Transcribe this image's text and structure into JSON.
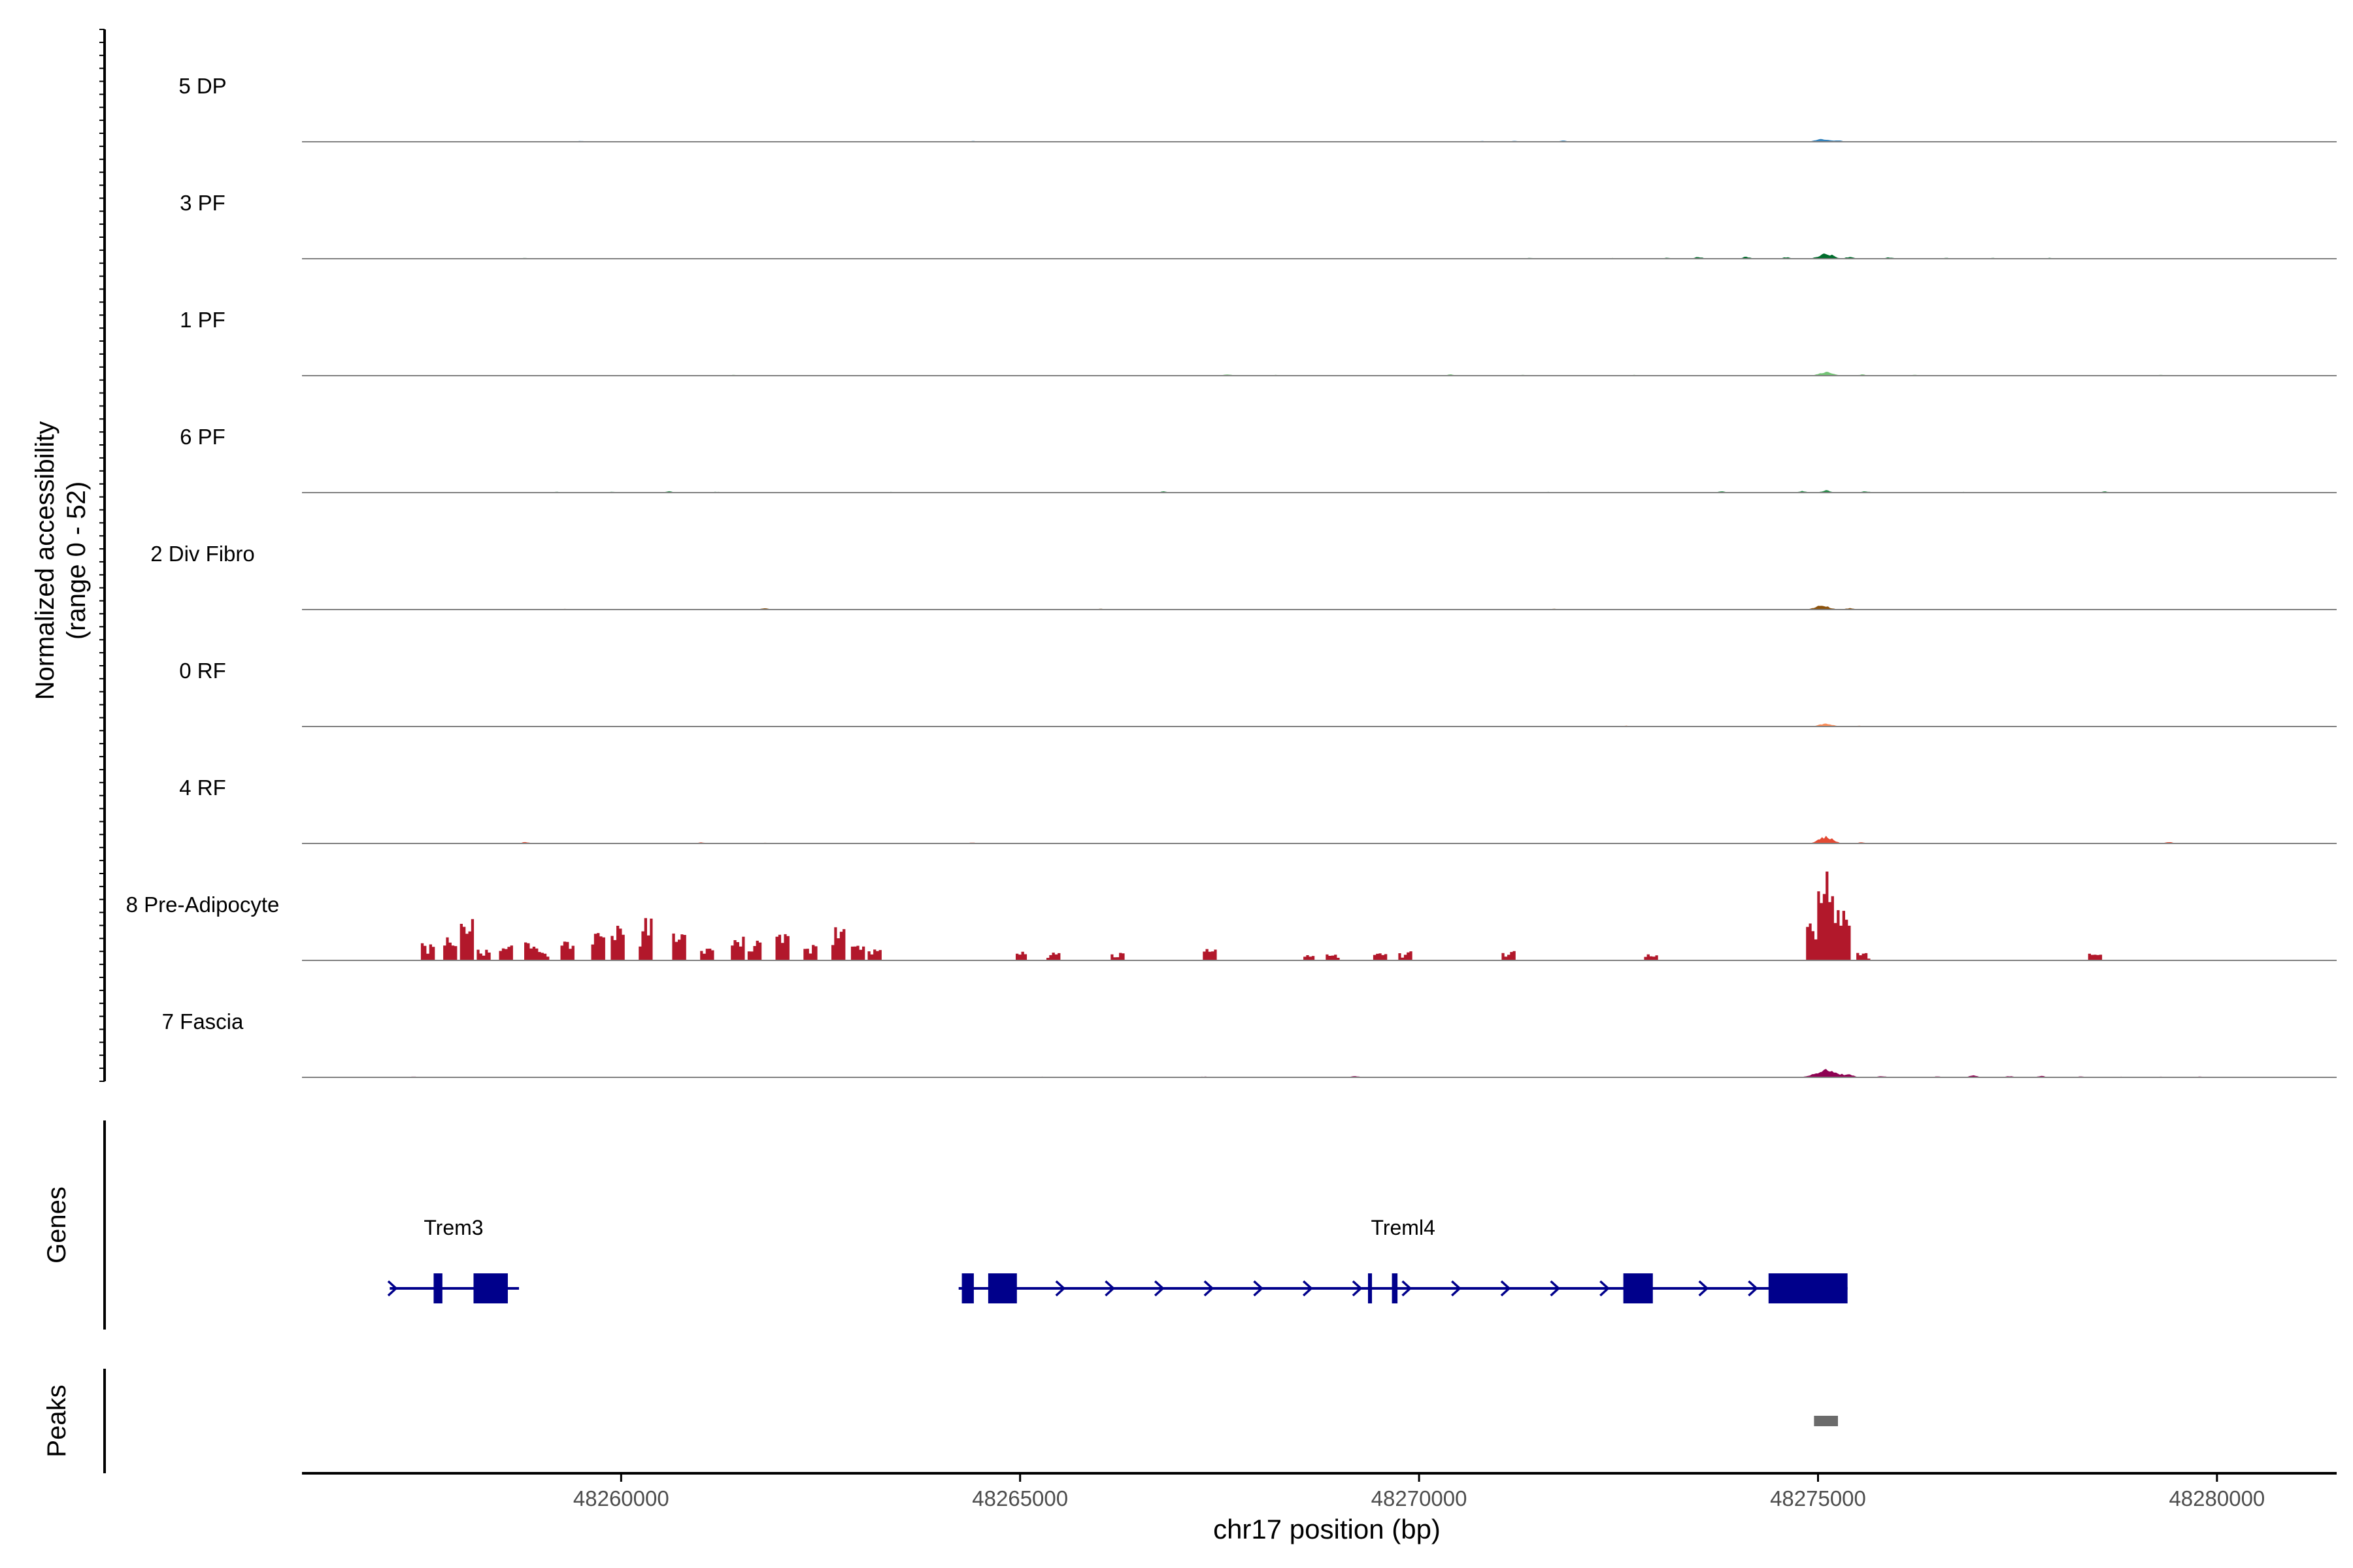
{
  "chart_data": {
    "type": "coverage",
    "title": "",
    "region": "chr17:48256000-48281500",
    "xlabel": "chr17 position (bp)",
    "xlim": [
      48256000,
      48281500
    ],
    "xticks": [
      48260000,
      48265000,
      48270000,
      48275000,
      48280000
    ],
    "xtick_labels": [
      "48260000",
      "48265000",
      "48270000",
      "48275000",
      "48280000"
    ],
    "ylabel_line1": "Normalized accessibility",
    "ylabel_line2": "(range 0 - 52)",
    "ylim": [
      0,
      52
    ],
    "tracks": [
      {
        "name": "5 DP",
        "color": "#3182bd",
        "style": "smooth",
        "scale": 0.18,
        "peaks": [
          [
            48257500,
            0.5
          ],
          [
            48258300,
            1.0
          ],
          [
            48258700,
            0.8
          ],
          [
            48259200,
            1.5
          ],
          [
            48259500,
            2.5
          ],
          [
            48259850,
            1.0
          ],
          [
            48261200,
            1.0
          ],
          [
            48262300,
            1.5
          ],
          [
            48263800,
            1.5
          ],
          [
            48264400,
            2.5
          ],
          [
            48265400,
            1.0
          ],
          [
            48266100,
            1.0
          ],
          [
            48267200,
            0.8
          ],
          [
            48268100,
            1.0
          ],
          [
            48269400,
            0.8
          ],
          [
            48270800,
            2.5
          ],
          [
            48271200,
            3.0
          ],
          [
            48271800,
            3.5
          ],
          [
            48272600,
            1.5
          ],
          [
            48273600,
            1.0
          ],
          [
            48274300,
            1.0
          ],
          [
            48275050,
            9.0
          ],
          [
            48275250,
            4.5
          ],
          [
            48275700,
            2.0
          ],
          [
            48276300,
            1.5
          ],
          [
            48277700,
            2.5
          ],
          [
            48278400,
            1.0
          ],
          [
            48279200,
            0.8
          ],
          [
            48280300,
            0.8
          ]
        ]
      },
      {
        "name": "3 PF",
        "color": "#006d2c",
        "style": "smooth",
        "scale": 0.22,
        "peaks": [
          [
            48257600,
            0.8
          ],
          [
            48258100,
            1.5
          ],
          [
            48258800,
            2.0
          ],
          [
            48259600,
            1.0
          ],
          [
            48260700,
            1.0
          ],
          [
            48261800,
            1.0
          ],
          [
            48262900,
            1.0
          ],
          [
            48264200,
            1.5
          ],
          [
            48265200,
            1.0
          ],
          [
            48266400,
            1.0
          ],
          [
            48267800,
            1.0
          ],
          [
            48268500,
            1.5
          ],
          [
            48270100,
            2.0
          ],
          [
            48271400,
            2.5
          ],
          [
            48272400,
            2.0
          ],
          [
            48273100,
            2.5
          ],
          [
            48273500,
            4.5
          ],
          [
            48274100,
            5.0
          ],
          [
            48274600,
            4.0
          ],
          [
            48275100,
            14.0
          ],
          [
            48275400,
            5.0
          ],
          [
            48275900,
            3.5
          ],
          [
            48276600,
            2.5
          ],
          [
            48277200,
            2.0
          ],
          [
            48277900,
            2.5
          ],
          [
            48278600,
            1.5
          ],
          [
            48279500,
            1.5
          ]
        ]
      },
      {
        "name": "1 PF",
        "color": "#74c476",
        "style": "smooth",
        "scale": 0.22,
        "peaks": [
          [
            48257800,
            0.8
          ],
          [
            48258600,
            1.0
          ],
          [
            48259500,
            1.0
          ],
          [
            48260400,
            1.0
          ],
          [
            48261400,
            2.0
          ],
          [
            48262500,
            1.0
          ],
          [
            48263400,
            1.5
          ],
          [
            48264400,
            1.5
          ],
          [
            48265700,
            1.5
          ],
          [
            48266800,
            1.0
          ],
          [
            48267600,
            3.0
          ],
          [
            48268200,
            2.0
          ],
          [
            48269400,
            1.5
          ],
          [
            48270400,
            3.0
          ],
          [
            48271300,
            2.0
          ],
          [
            48272700,
            2.0
          ],
          [
            48273700,
            1.0
          ],
          [
            48274400,
            1.0
          ],
          [
            48275100,
            10.0
          ],
          [
            48275550,
            3.0
          ],
          [
            48276200,
            2.5
          ],
          [
            48277100,
            1.5
          ],
          [
            48278200,
            1.0
          ],
          [
            48279300,
            2.0
          ],
          [
            48280300,
            0.8
          ]
        ]
      },
      {
        "name": "6 PF",
        "color": "#238b45",
        "style": "smooth",
        "scale": 0.22,
        "peaks": [
          [
            48257200,
            1.5
          ],
          [
            48258400,
            1.5
          ],
          [
            48259200,
            2.0
          ],
          [
            48259900,
            2.5
          ],
          [
            48260600,
            3.5
          ],
          [
            48261200,
            2.0
          ],
          [
            48261800,
            1.5
          ],
          [
            48262700,
            1.5
          ],
          [
            48263400,
            2.0
          ],
          [
            48264800,
            1.5
          ],
          [
            48265500,
            1.5
          ],
          [
            48266300,
            2.0
          ],
          [
            48266800,
            3.0
          ],
          [
            48269700,
            1.5
          ],
          [
            48270400,
            1.0
          ],
          [
            48271600,
            2.0
          ],
          [
            48272200,
            1.5
          ],
          [
            48272900,
            1.5
          ],
          [
            48273800,
            3.0
          ],
          [
            48274800,
            4.0
          ],
          [
            48275100,
            6.0
          ],
          [
            48275600,
            3.5
          ],
          [
            48276100,
            1.5
          ],
          [
            48276800,
            2.0
          ],
          [
            48277700,
            1.5
          ],
          [
            48278600,
            3.0
          ],
          [
            48279200,
            1.5
          ],
          [
            48280300,
            0.5
          ]
        ]
      },
      {
        "name": "2 Div Fibro",
        "color": "#8c510a",
        "style": "smooth",
        "scale": 0.22,
        "peaks": [
          [
            48257500,
            1.5
          ],
          [
            48258300,
            1.5
          ],
          [
            48259300,
            2.0
          ],
          [
            48260200,
            1.5
          ],
          [
            48261000,
            1.5
          ],
          [
            48261800,
            3.0
          ],
          [
            48262300,
            1.5
          ],
          [
            48263100,
            1.5
          ],
          [
            48264400,
            1.5
          ],
          [
            48265200,
            1.5
          ],
          [
            48266000,
            2.0
          ],
          [
            48267200,
            1.5
          ],
          [
            48268100,
            1.5
          ],
          [
            48270000,
            1.5
          ],
          [
            48270900,
            1.5
          ],
          [
            48271700,
            2.0
          ],
          [
            48272500,
            1.0
          ],
          [
            48273200,
            1.0
          ],
          [
            48273800,
            1.5
          ],
          [
            48274400,
            1.5
          ],
          [
            48275050,
            11.0
          ],
          [
            48275400,
            4.0
          ],
          [
            48276000,
            1.0
          ],
          [
            48277000,
            1.0
          ],
          [
            48278000,
            1.5
          ],
          [
            48279100,
            1.5
          ],
          [
            48280200,
            1.0
          ]
        ]
      },
      {
        "name": "0 RF",
        "color": "#fc8d59",
        "style": "smooth",
        "scale": 0.18,
        "peaks": [
          [
            48257500,
            0.8
          ],
          [
            48258500,
            1.5
          ],
          [
            48259500,
            1.0
          ],
          [
            48260400,
            1.0
          ],
          [
            48261600,
            2.0
          ],
          [
            48262500,
            1.5
          ],
          [
            48263800,
            1.5
          ],
          [
            48264700,
            1.5
          ],
          [
            48266000,
            1.0
          ],
          [
            48267300,
            1.0
          ],
          [
            48268500,
            1.0
          ],
          [
            48269400,
            2.0
          ],
          [
            48270500,
            1.0
          ],
          [
            48271600,
            1.0
          ],
          [
            48272600,
            2.5
          ],
          [
            48273600,
            1.0
          ],
          [
            48274500,
            1.0
          ],
          [
            48275100,
            9.0
          ],
          [
            48275500,
            2.5
          ],
          [
            48276300,
            1.0
          ],
          [
            48277500,
            1.0
          ],
          [
            48278800,
            1.0
          ],
          [
            48280100,
            0.8
          ]
        ]
      },
      {
        "name": "4 RF",
        "color": "#e34a33",
        "style": "smooth",
        "scale": 0.22,
        "peaks": [
          [
            48257400,
            2.0
          ],
          [
            48258100,
            1.0
          ],
          [
            48258800,
            3.5
          ],
          [
            48259300,
            1.5
          ],
          [
            48260200,
            1.0
          ],
          [
            48261000,
            2.5
          ],
          [
            48261800,
            2.0
          ],
          [
            48262700,
            1.5
          ],
          [
            48263600,
            1.5
          ],
          [
            48264400,
            2.5
          ],
          [
            48265600,
            1.0
          ],
          [
            48266800,
            1.0
          ],
          [
            48267800,
            1.0
          ],
          [
            48268800,
            1.0
          ],
          [
            48269600,
            1.0
          ],
          [
            48270600,
            1.5
          ],
          [
            48271800,
            1.0
          ],
          [
            48272700,
            1.0
          ],
          [
            48273600,
            1.0
          ],
          [
            48274400,
            1.0
          ],
          [
            48275100,
            18.0
          ],
          [
            48275550,
            3.0
          ],
          [
            48276300,
            1.0
          ],
          [
            48277600,
            1.5
          ],
          [
            48278600,
            1.0
          ],
          [
            48279400,
            4.0
          ],
          [
            48280300,
            1.0
          ]
        ]
      },
      {
        "name": "8 Pre-Adipocyte",
        "color": "#b2182b",
        "style": "bars",
        "scale": 1.0,
        "peaks": [
          [
            48257550,
            12
          ],
          [
            48257850,
            12
          ],
          [
            48258050,
            22
          ],
          [
            48258250,
            6
          ],
          [
            48258550,
            8
          ],
          [
            48258850,
            10
          ],
          [
            48259000,
            6
          ],
          [
            48259300,
            10
          ],
          [
            48259700,
            14
          ],
          [
            48259950,
            18
          ],
          [
            48260300,
            22
          ],
          [
            48260700,
            14
          ],
          [
            48261050,
            6
          ],
          [
            48261450,
            12
          ],
          [
            48261650,
            12
          ],
          [
            48262000,
            14
          ],
          [
            48262350,
            10
          ],
          [
            48262700,
            20
          ],
          [
            48262950,
            8
          ],
          [
            48263150,
            8
          ],
          [
            48265000,
            5
          ],
          [
            48265400,
            4
          ],
          [
            48266200,
            4
          ],
          [
            48267350,
            7
          ],
          [
            48268600,
            3
          ],
          [
            48268900,
            4
          ],
          [
            48269500,
            4
          ],
          [
            48269800,
            5
          ],
          [
            48271100,
            5
          ],
          [
            48272900,
            3
          ],
          [
            48274900,
            20
          ],
          [
            48275050,
            47
          ],
          [
            48275250,
            28
          ],
          [
            48275550,
            4
          ],
          [
            48278450,
            4
          ]
        ]
      },
      {
        "name": "7 Fascia",
        "color": "#8e0152",
        "style": "smooth",
        "scale": 0.22,
        "peaks": [
          [
            48257400,
            2.0
          ],
          [
            48258100,
            1.5
          ],
          [
            48258800,
            2.0
          ],
          [
            48260100,
            1.0
          ],
          [
            48260700,
            1.5
          ],
          [
            48261300,
            1.0
          ],
          [
            48262300,
            1.5
          ],
          [
            48262900,
            1.5
          ],
          [
            48263600,
            2.0
          ],
          [
            48264200,
            2.0
          ],
          [
            48264900,
            1.5
          ],
          [
            48265300,
            2.0
          ],
          [
            48266100,
            1.5
          ],
          [
            48266500,
            1.0
          ],
          [
            48267300,
            2.5
          ],
          [
            48267900,
            1.5
          ],
          [
            48268600,
            1.5
          ],
          [
            48269200,
            3.5
          ],
          [
            48269800,
            1.5
          ],
          [
            48272300,
            1.0
          ],
          [
            48272900,
            1.5
          ],
          [
            48273600,
            1.5
          ],
          [
            48274300,
            1.5
          ],
          [
            48274900,
            5.0
          ],
          [
            48275100,
            24.0
          ],
          [
            48275350,
            8.0
          ],
          [
            48275800,
            3.5
          ],
          [
            48276500,
            2.5
          ],
          [
            48276950,
            5.0
          ],
          [
            48277400,
            3.0
          ],
          [
            48277800,
            3.5
          ],
          [
            48278300,
            2.5
          ],
          [
            48278800,
            2.0
          ],
          [
            48279300,
            2.5
          ],
          [
            48279800,
            2.0
          ],
          [
            48280300,
            1.5
          ]
        ]
      }
    ],
    "genes_label": "Genes",
    "genes": [
      {
        "name": "Trem3",
        "strand": "+",
        "start": 48257100,
        "end": 48258720,
        "exons": [
          [
            48257650,
            48257760
          ],
          [
            48258150,
            48258580
          ]
        ]
      },
      {
        "name": "Treml4",
        "strand": "+",
        "start": 48264230,
        "end": 48275370,
        "exons": [
          [
            48264270,
            48264420
          ],
          [
            48264600,
            48264960
          ],
          [
            48269360,
            48269410
          ],
          [
            48269660,
            48269730
          ],
          [
            48272560,
            48272930
          ],
          [
            48274380,
            48275370
          ]
        ]
      }
    ],
    "peaks_label": "Peaks",
    "peak_regions": [
      [
        48274950,
        48275250
      ]
    ],
    "colors": {
      "baseline": "#808080",
      "gene": "#00008b",
      "peak": "#6b6b6b",
      "axis": "#000000"
    }
  }
}
